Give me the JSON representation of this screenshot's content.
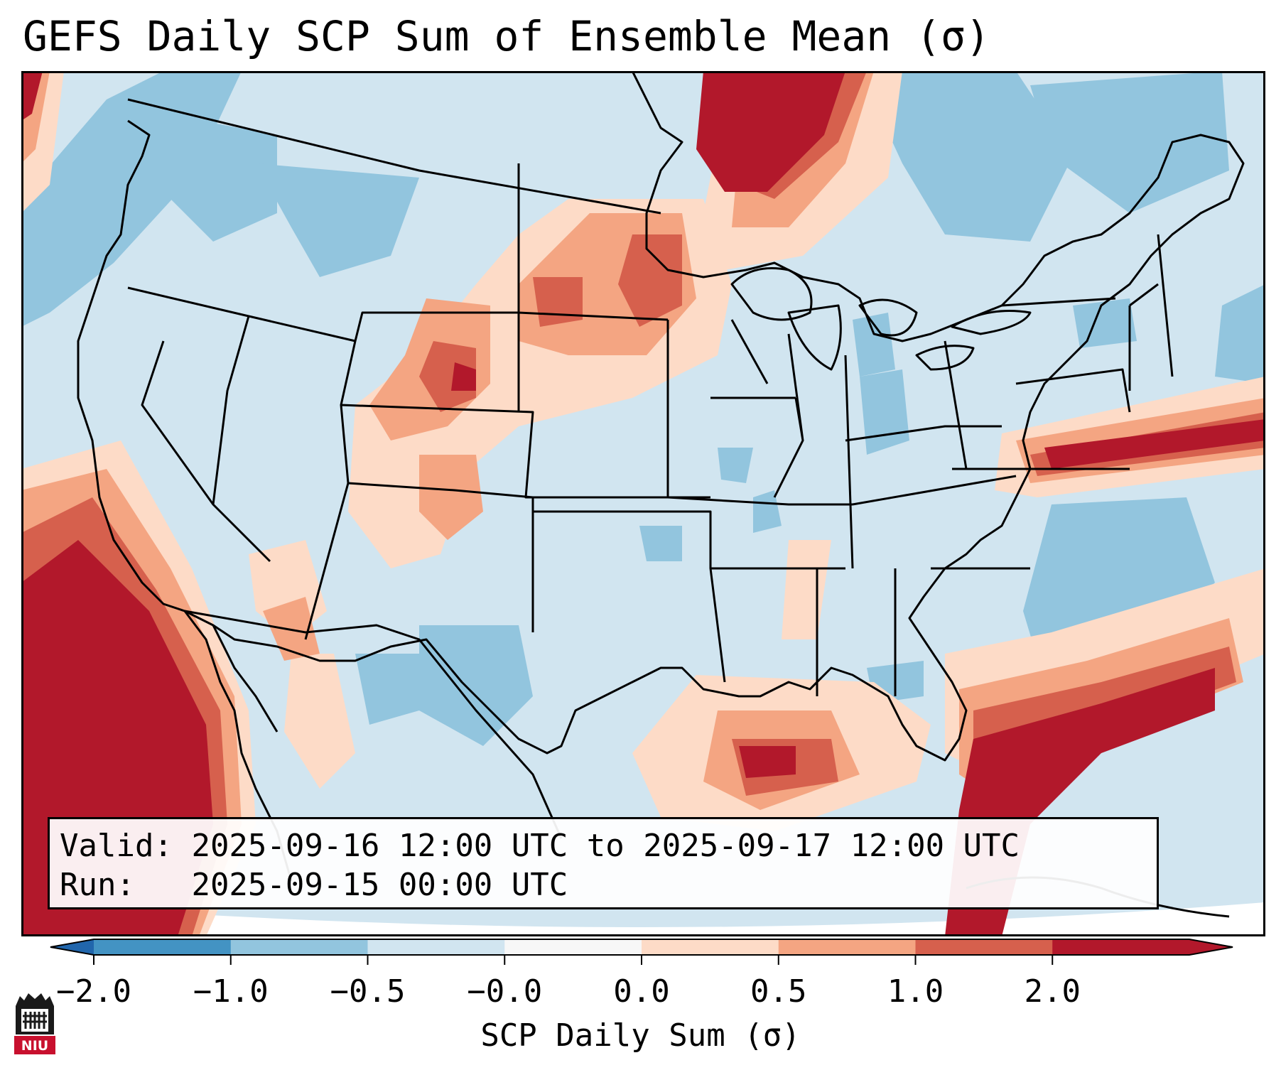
{
  "title": "GEFS Daily SCP Sum of Ensemble Mean (σ)",
  "info": {
    "valid_label": "Valid:",
    "valid_value": "2025-09-16 12:00 UTC to 2025-09-17 12:00 UTC",
    "run_label": "Run:",
    "run_value": "2025-09-15 00:00 UTC"
  },
  "colorbar": {
    "label": "SCP Daily Sum (σ)",
    "ticks": [
      "−2.0",
      "−1.0",
      "−0.5",
      "−0.0",
      "0.0",
      "0.5",
      "1.0",
      "2.0"
    ],
    "colors": [
      "#4393c3",
      "#92c5de",
      "#d1e5f0",
      "#f7f7f7",
      "#fddbc7",
      "#f4a582",
      "#d6604d",
      "#b2182b"
    ]
  },
  "logo": {
    "text": "NIU",
    "color": "#c8102e"
  },
  "map": {
    "region": "Continental United States",
    "background_color": "#d1e5f0",
    "high_anomaly_areas": [
      "Upper Midwest / Minnesota",
      "Wyoming / Colorado Front Range",
      "Gulf of Mexico",
      "Florida and western Atlantic",
      "Mid-Atlantic coast",
      "Eastern Pacific off Baja California"
    ]
  }
}
